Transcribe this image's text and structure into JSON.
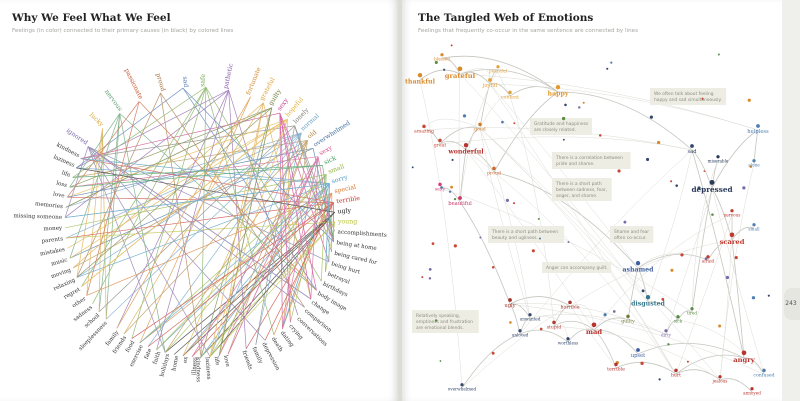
{
  "left_page": {
    "title": "Why We Feel What We Feel",
    "subtitle": "Feelings (in color) connected to their primary causes (in black) by colored lines",
    "feelings_right": [
      {
        "label": "grateful",
        "color": "#e0a23a"
      },
      {
        "label": "guilty",
        "color": "#6f7e3a"
      },
      {
        "label": "sexy",
        "color": "#c9378b"
      },
      {
        "label": "hopeful",
        "color": "#e2b13a"
      },
      {
        "label": "lonely",
        "color": "#7d7d78"
      },
      {
        "label": "normal",
        "color": "#6aa0c8"
      },
      {
        "label": "old",
        "color": "#b28740"
      },
      {
        "label": "overwhelmed",
        "color": "#3f6f9e"
      },
      {
        "label": "sexy",
        "color": "#d24f8d"
      },
      {
        "label": "sick",
        "color": "#3a9a56"
      },
      {
        "label": "small",
        "color": "#8fb43a"
      },
      {
        "label": "sorry",
        "color": "#4d9ac0"
      },
      {
        "label": "special",
        "color": "#d8772c"
      },
      {
        "label": "terrible",
        "color": "#c83a2f"
      },
      {
        "label": "ugly",
        "color": "#222222"
      },
      {
        "label": "young",
        "color": "#b7c23a"
      }
    ],
    "causes_right": [
      "accomplishments",
      "being at home",
      "being cared for",
      "being hurt",
      "betrayal",
      "birthdays",
      "body image",
      "change",
      "comparison",
      "conversations",
      "crying",
      "dating",
      "death",
      "depression",
      "family",
      "friends"
    ],
    "feelings_top": [
      {
        "label": "ignored",
        "color": "#7b6aa8"
      },
      {
        "label": "lucky",
        "color": "#d9a43a"
      },
      {
        "label": "nervous",
        "color": "#5b9c6c"
      },
      {
        "label": "passionate",
        "color": "#c5542e"
      },
      {
        "label": "proud",
        "color": "#a5703b"
      },
      {
        "label": "sad",
        "color": "#4c73b1"
      },
      {
        "label": "safe",
        "color": "#72a64a"
      },
      {
        "label": "pathetic",
        "color": "#8a5aa8"
      },
      {
        "label": "fortunate",
        "color": "#d68a2e"
      }
    ],
    "causes_left": [
      "sleeplessness",
      "school",
      "sadness",
      "other",
      "regret",
      "relaxing",
      "moving",
      "music",
      "mistakes",
      "parents",
      "money",
      "missing someone",
      "memories",
      "love",
      "loss",
      "life",
      "laziness",
      "kindness"
    ],
    "causes_bottom": [
      "love",
      "life",
      "laziness",
      "kindness",
      "illness",
      "ex",
      "home",
      "holidays",
      "faith",
      "fate",
      "exercise",
      "food",
      "friends",
      "family"
    ]
  },
  "right_page": {
    "title": "The Tangled Web of Emotions",
    "subtitle": "Feelings that frequently co-occur in the same sentence are connected by lines",
    "nodes": [
      {
        "label": "thankful",
        "color": "#d98a2b"
      },
      {
        "label": "grateful",
        "color": "#d98a2b"
      },
      {
        "label": "joyful",
        "color": "#e6a13a"
      },
      {
        "label": "peaceful",
        "color": "#e0a23a"
      },
      {
        "label": "content",
        "color": "#e0a23a"
      },
      {
        "label": "happy",
        "color": "#e09a2e"
      },
      {
        "label": "blessed",
        "color": "#d98a2b"
      },
      {
        "label": "good",
        "color": "#cf7a28"
      },
      {
        "label": "amazing",
        "color": "#c94835"
      },
      {
        "label": "great",
        "color": "#c94835"
      },
      {
        "label": "wonderful",
        "color": "#b8332e"
      },
      {
        "label": "proud",
        "color": "#d0662e"
      },
      {
        "label": "sexy",
        "color": "#d6407a"
      },
      {
        "label": "beautiful",
        "color": "#c93568"
      },
      {
        "label": "sad",
        "color": "#35486e"
      },
      {
        "label": "depressed",
        "color": "#2b3a58"
      },
      {
        "label": "miserable",
        "color": "#2b3a58"
      },
      {
        "label": "helpless",
        "color": "#4e7fb0"
      },
      {
        "label": "alone",
        "color": "#4e7fb0"
      },
      {
        "label": "scared",
        "color": "#c23a2e"
      },
      {
        "label": "small",
        "color": "#4e7fb0"
      },
      {
        "label": "nervous",
        "color": "#c23a2e"
      },
      {
        "label": "afraid",
        "color": "#c23a2e"
      },
      {
        "label": "ashamed",
        "color": "#3e5fa0"
      },
      {
        "label": "disgusted",
        "color": "#34778c"
      },
      {
        "label": "guilty",
        "color": "#6a7c3a"
      },
      {
        "label": "sick",
        "color": "#4f8a3c"
      },
      {
        "label": "dirty",
        "color": "#7b6aa8"
      },
      {
        "label": "tired",
        "color": "#5a8c44"
      },
      {
        "label": "ugly",
        "color": "#a8322c"
      },
      {
        "label": "horrible",
        "color": "#a8322c"
      },
      {
        "label": "stupid",
        "color": "#b13b2e"
      },
      {
        "label": "mad",
        "color": "#b8332e"
      },
      {
        "label": "upset",
        "color": "#3e5fa0"
      },
      {
        "label": "angry",
        "color": "#b8332e"
      },
      {
        "label": "confused",
        "color": "#4e7fb0"
      },
      {
        "label": "unloved",
        "color": "#34486e"
      },
      {
        "label": "worthless",
        "color": "#34486e"
      },
      {
        "label": "unwanted",
        "color": "#34486e"
      },
      {
        "label": "overwhelmed",
        "color": "#34486e"
      },
      {
        "label": "terrible",
        "color": "#b8332e"
      },
      {
        "label": "hurt",
        "color": "#b8332e"
      },
      {
        "label": "jealous",
        "color": "#b8332e"
      },
      {
        "label": "annoyed",
        "color": "#b8332e"
      }
    ],
    "notes": [
      {
        "lines": [
          "We often talk about feeling",
          "happy and sad simultaneously."
        ]
      },
      {
        "lines": [
          "Gratitude and happiness",
          "are closely related."
        ]
      },
      {
        "lines": [
          "There is a correlation between",
          "pride and shame."
        ]
      },
      {
        "lines": [
          "There is a short path",
          "between sadness, fear,",
          "anger, and shame."
        ]
      },
      {
        "lines": [
          "There is a short path between",
          "beauty and ugliness."
        ]
      },
      {
        "lines": [
          "Shame and fear",
          "often co-occur."
        ]
      },
      {
        "lines": [
          "Anger can accompany guilt."
        ]
      },
      {
        "lines": [
          "Relatively speaking,",
          "emptiness and frustration",
          "are emotional blends."
        ]
      }
    ],
    "page_number": "243"
  }
}
